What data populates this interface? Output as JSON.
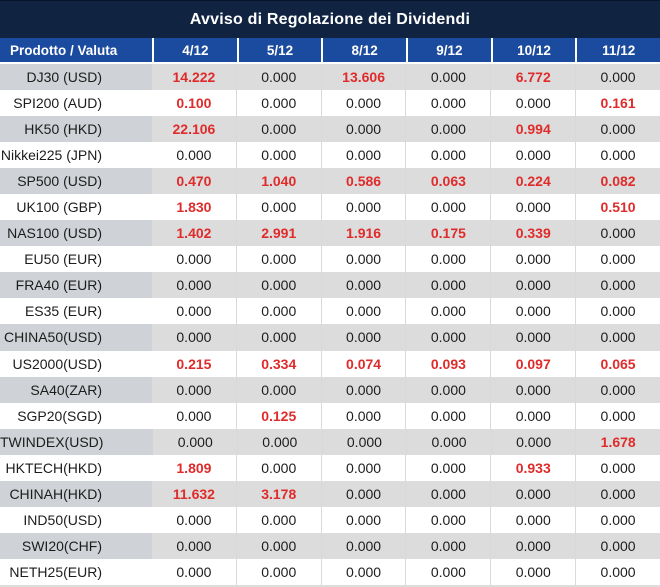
{
  "title": "Avviso di Regolazione dei Dividendi",
  "colors": {
    "title_bg": "#102441",
    "header_bg": "#1b4b9e",
    "gray_row_product": "#cfd2d6",
    "gray_row_value": "#dcdcdc",
    "separator": "#d9d9d9",
    "negative_red": "#e02b2b",
    "text": "#1c1c1c"
  },
  "header": {
    "product_label": "Prodotto / Valuta",
    "dates": [
      "4/12",
      "5/12",
      "8/12",
      "9/12",
      "10/12",
      "11/12"
    ]
  },
  "rows": [
    {
      "product": "DJ30 (USD)",
      "values": [
        "14.222",
        "0.000",
        "13.606",
        "0.000",
        "6.772",
        "0.000"
      ]
    },
    {
      "product": "SPI200 (AUD)",
      "values": [
        "0.100",
        "0.000",
        "0.000",
        "0.000",
        "0.000",
        "0.161"
      ]
    },
    {
      "product": "HK50 (HKD)",
      "values": [
        "22.106",
        "0.000",
        "0.000",
        "0.000",
        "0.994",
        "0.000"
      ]
    },
    {
      "product": "Nikkei225 (JPN)",
      "values": [
        "0.000",
        "0.000",
        "0.000",
        "0.000",
        "0.000",
        "0.000"
      ]
    },
    {
      "product": "SP500 (USD)",
      "values": [
        "0.470",
        "1.040",
        "0.586",
        "0.063",
        "0.224",
        "0.082"
      ]
    },
    {
      "product": "UK100 (GBP)",
      "values": [
        "1.830",
        "0.000",
        "0.000",
        "0.000",
        "0.000",
        "0.510"
      ]
    },
    {
      "product": "NAS100 (USD)",
      "values": [
        "1.402",
        "2.991",
        "1.916",
        "0.175",
        "0.339",
        "0.000"
      ]
    },
    {
      "product": "EU50 (EUR)",
      "values": [
        "0.000",
        "0.000",
        "0.000",
        "0.000",
        "0.000",
        "0.000"
      ]
    },
    {
      "product": "FRA40 (EUR)",
      "values": [
        "0.000",
        "0.000",
        "0.000",
        "0.000",
        "0.000",
        "0.000"
      ]
    },
    {
      "product": "ES35 (EUR)",
      "values": [
        "0.000",
        "0.000",
        "0.000",
        "0.000",
        "0.000",
        "0.000"
      ]
    },
    {
      "product": "CHINA50(USD)",
      "values": [
        "0.000",
        "0.000",
        "0.000",
        "0.000",
        "0.000",
        "0.000"
      ]
    },
    {
      "product": "US2000(USD)",
      "values": [
        "0.215",
        "0.334",
        "0.074",
        "0.093",
        "0.097",
        "0.065"
      ]
    },
    {
      "product": "SA40(ZAR)",
      "values": [
        "0.000",
        "0.000",
        "0.000",
        "0.000",
        "0.000",
        "0.000"
      ]
    },
    {
      "product": "SGP20(SGD)",
      "values": [
        "0.000",
        "0.125",
        "0.000",
        "0.000",
        "0.000",
        "0.000"
      ]
    },
    {
      "product": "TWINDEX(USD)",
      "values": [
        "0.000",
        "0.000",
        "0.000",
        "0.000",
        "0.000",
        "1.678"
      ]
    },
    {
      "product": "HKTECH(HKD)",
      "values": [
        "1.809",
        "0.000",
        "0.000",
        "0.000",
        "0.933",
        "0.000"
      ]
    },
    {
      "product": "CHINAH(HKD)",
      "values": [
        "11.632",
        "3.178",
        "0.000",
        "0.000",
        "0.000",
        "0.000"
      ]
    },
    {
      "product": "IND50(USD)",
      "values": [
        "0.000",
        "0.000",
        "0.000",
        "0.000",
        "0.000",
        "0.000"
      ]
    },
    {
      "product": "SWI20(CHF)",
      "values": [
        "0.000",
        "0.000",
        "0.000",
        "0.000",
        "0.000",
        "0.000"
      ]
    },
    {
      "product": "NETH25(EUR)",
      "values": [
        "0.000",
        "0.000",
        "0.000",
        "0.000",
        "0.000",
        "0.000"
      ]
    }
  ]
}
